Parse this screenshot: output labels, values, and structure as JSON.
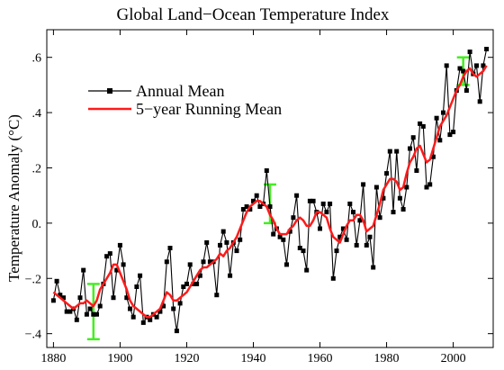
{
  "chart_data": {
    "type": "line",
    "title": "Global Land−Ocean Temperature Index",
    "xlabel": "",
    "ylabel": "Temperature Anomaly (°C)",
    "xlim": [
      1878,
      2012
    ],
    "ylim": [
      -0.45,
      0.7
    ],
    "x_ticks": [
      1880,
      1900,
      1920,
      1940,
      1960,
      1980,
      2000
    ],
    "y_ticks": [
      -0.4,
      -0.2,
      0.0,
      0.2,
      0.4,
      0.6
    ],
    "y_tick_labels": [
      "−.4",
      "−.2",
      "0.",
      ".2",
      ".4",
      ".6"
    ],
    "legend": {
      "position": "upper-left",
      "entries": [
        "Annual Mean",
        "5−year Running Mean"
      ]
    },
    "colors": {
      "annual": "#000000",
      "running": "#ff1a1a",
      "error_bars": "#44ee22"
    },
    "x": [
      1880,
      1881,
      1882,
      1883,
      1884,
      1885,
      1886,
      1887,
      1888,
      1889,
      1890,
      1891,
      1892,
      1893,
      1894,
      1895,
      1896,
      1897,
      1898,
      1899,
      1900,
      1901,
      1902,
      1903,
      1904,
      1905,
      1906,
      1907,
      1908,
      1909,
      1910,
      1911,
      1912,
      1913,
      1914,
      1915,
      1916,
      1917,
      1918,
      1919,
      1920,
      1921,
      1922,
      1923,
      1924,
      1925,
      1926,
      1927,
      1928,
      1929,
      1930,
      1931,
      1932,
      1933,
      1934,
      1935,
      1936,
      1937,
      1938,
      1939,
      1940,
      1941,
      1942,
      1943,
      1944,
      1945,
      1946,
      1947,
      1948,
      1949,
      1950,
      1951,
      1952,
      1953,
      1954,
      1955,
      1956,
      1957,
      1958,
      1959,
      1960,
      1961,
      1962,
      1963,
      1964,
      1965,
      1966,
      1967,
      1968,
      1969,
      1970,
      1971,
      1972,
      1973,
      1974,
      1975,
      1976,
      1977,
      1978,
      1979,
      1980,
      1981,
      1982,
      1983,
      1984,
      1985,
      1986,
      1987,
      1988,
      1989,
      1990,
      1991,
      1992,
      1993,
      1994,
      1995,
      1996,
      1997,
      1998,
      1999,
      2000,
      2001,
      2002,
      2003,
      2004,
      2005,
      2006,
      2007,
      2008,
      2009,
      2010
    ],
    "series": [
      {
        "name": "Annual Mean",
        "values": [
          -0.28,
          -0.21,
          -0.26,
          -0.27,
          -0.32,
          -0.32,
          -0.31,
          -0.35,
          -0.27,
          -0.17,
          -0.33,
          -0.31,
          -0.33,
          -0.33,
          -0.3,
          -0.22,
          -0.12,
          -0.11,
          -0.27,
          -0.17,
          -0.08,
          -0.15,
          -0.27,
          -0.31,
          -0.34,
          -0.23,
          -0.19,
          -0.36,
          -0.34,
          -0.35,
          -0.33,
          -0.34,
          -0.32,
          -0.3,
          -0.14,
          -0.09,
          -0.31,
          -0.39,
          -0.29,
          -0.23,
          -0.22,
          -0.15,
          -0.22,
          -0.22,
          -0.19,
          -0.14,
          -0.07,
          -0.14,
          -0.14,
          -0.26,
          -0.08,
          -0.03,
          -0.07,
          -0.19,
          -0.07,
          -0.1,
          -0.06,
          0.05,
          0.06,
          0.05,
          0.08,
          0.1,
          0.06,
          0.07,
          0.19,
          0.06,
          -0.04,
          -0.02,
          -0.05,
          -0.06,
          -0.15,
          -0.03,
          0.02,
          0.1,
          -0.09,
          -0.1,
          -0.17,
          0.08,
          0.08,
          0.04,
          -0.02,
          0.07,
          0.04,
          0.07,
          -0.2,
          -0.1,
          -0.05,
          -0.02,
          -0.06,
          0.07,
          0.04,
          -0.08,
          0.01,
          0.14,
          -0.08,
          -0.05,
          -0.16,
          0.13,
          0.02,
          0.09,
          0.18,
          0.26,
          0.04,
          0.26,
          0.09,
          0.05,
          0.13,
          0.27,
          0.31,
          0.19,
          0.36,
          0.35,
          0.13,
          0.14,
          0.24,
          0.38,
          0.3,
          0.4,
          0.57,
          0.32,
          0.33,
          0.48,
          0.56,
          0.55,
          0.48,
          0.62,
          0.54,
          0.57,
          0.44,
          0.57,
          0.63
        ]
      },
      {
        "name": "5−year Running Mean",
        "values": [
          -0.25,
          -0.26,
          -0.27,
          -0.28,
          -0.29,
          -0.3,
          -0.31,
          -0.3,
          -0.29,
          -0.29,
          -0.28,
          -0.29,
          -0.3,
          -0.28,
          -0.24,
          -0.22,
          -0.2,
          -0.18,
          -0.15,
          -0.15,
          -0.18,
          -0.21,
          -0.24,
          -0.28,
          -0.3,
          -0.31,
          -0.32,
          -0.33,
          -0.34,
          -0.34,
          -0.33,
          -0.32,
          -0.31,
          -0.28,
          -0.25,
          -0.26,
          -0.28,
          -0.28,
          -0.27,
          -0.26,
          -0.25,
          -0.23,
          -0.21,
          -0.19,
          -0.17,
          -0.16,
          -0.16,
          -0.15,
          -0.14,
          -0.13,
          -0.11,
          -0.12,
          -0.1,
          -0.09,
          -0.07,
          -0.05,
          -0.02,
          0.01,
          0.04,
          0.06,
          0.07,
          0.08,
          0.08,
          0.07,
          0.06,
          0.03,
          0.01,
          -0.02,
          -0.04,
          -0.04,
          -0.04,
          -0.02,
          -0.01,
          0.01,
          0.02,
          0.01,
          -0.01,
          -0.01,
          0.01,
          0.04,
          0.04,
          0.03,
          0.02,
          -0.02,
          -0.05,
          -0.06,
          -0.07,
          -0.04,
          -0.01,
          0.01,
          0.01,
          0.03,
          0.03,
          0.01,
          -0.03,
          -0.02,
          -0.01,
          0.03,
          0.07,
          0.12,
          0.14,
          0.16,
          0.16,
          0.15,
          0.12,
          0.13,
          0.18,
          0.22,
          0.24,
          0.27,
          0.28,
          0.25,
          0.22,
          0.23,
          0.27,
          0.31,
          0.35,
          0.37,
          0.39,
          0.42,
          0.45,
          0.48,
          0.5,
          0.53,
          0.55,
          0.56,
          0.54,
          0.53,
          0.54,
          0.55,
          0.57
        ]
      }
    ],
    "error_bars": [
      {
        "x": 1892,
        "y": -0.32,
        "low": -0.42,
        "high": -0.22
      },
      {
        "x": 1945,
        "y": 0.07,
        "low": 0.0,
        "high": 0.14
      },
      {
        "x": 2003,
        "y": 0.55,
        "low": 0.5,
        "high": 0.6
      }
    ]
  }
}
